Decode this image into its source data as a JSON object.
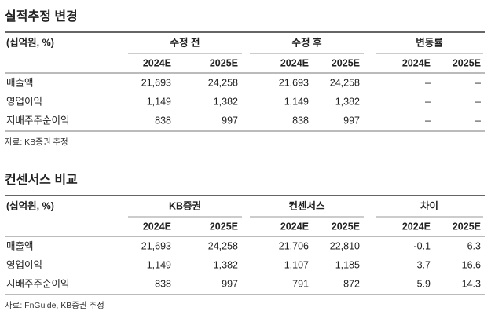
{
  "sections": [
    {
      "title": "실적추정 변경",
      "table": {
        "unit": "(십억원, %)",
        "groups": [
          "수정 전",
          "수정 후",
          "변동률"
        ],
        "columns": [
          "2024E",
          "2025E",
          "2024E",
          "2025E",
          "2024E",
          "2025E"
        ],
        "rows": [
          [
            "매출액",
            "21,693",
            "24,258",
            "21,693",
            "24,258",
            "–",
            "–"
          ],
          [
            "영업이익",
            "1,149",
            "1,382",
            "1,149",
            "1,382",
            "–",
            "–"
          ],
          [
            "지배주주순이익",
            "838",
            "997",
            "838",
            "997",
            "–",
            "–"
          ]
        ]
      },
      "source": "자료: KB증권 추정"
    },
    {
      "title": "컨센서스 비교",
      "table": {
        "unit": "(십억원, %)",
        "groups": [
          "KB증권",
          "컨센서스",
          "차이"
        ],
        "columns": [
          "2024E",
          "2025E",
          "2024E",
          "2025E",
          "2024E",
          "2025E"
        ],
        "rows": [
          [
            "매출액",
            "21,693",
            "24,258",
            "21,706",
            "22,810",
            "-0.1",
            "6.3"
          ],
          [
            "영업이익",
            "1,149",
            "1,382",
            "1,107",
            "1,185",
            "3.7",
            "16.6"
          ],
          [
            "지배주주순이익",
            "838",
            "997",
            "791",
            "872",
            "5.9",
            "14.3"
          ]
        ]
      },
      "source": "자료: FnGuide, KB증권 추정"
    }
  ]
}
